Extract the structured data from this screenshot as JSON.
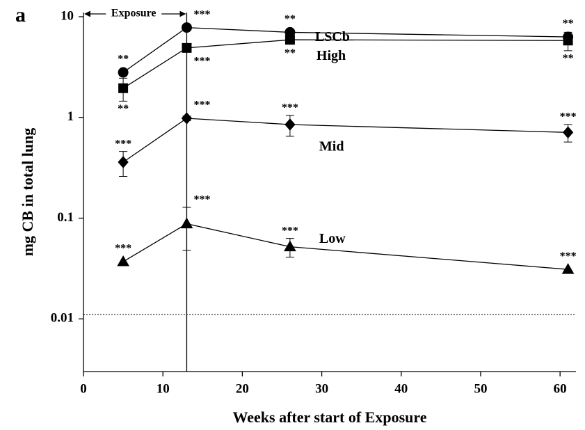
{
  "chart_data": {
    "type": "line",
    "panel_label": "a",
    "xlabel": "Weeks after start of Exposure",
    "ylabel": "mg CB in total lung",
    "x": [
      5,
      13,
      26,
      61
    ],
    "xlim": [
      0,
      62
    ],
    "xticks": [
      0,
      10,
      20,
      30,
      40,
      50,
      60
    ],
    "ylim": [
      0.003,
      11
    ],
    "yticks": [
      10,
      1,
      0.1,
      0.01
    ],
    "log_y": true,
    "color": "#000000",
    "exposure_label": "Exposure",
    "exposure_range": [
      0,
      13
    ],
    "reference_line": 0.011,
    "series": [
      {
        "name": "LSCb",
        "marker": "circle",
        "values": [
          2.8,
          7.8,
          7.0,
          6.3
        ],
        "errors": [
          0.2,
          0.3,
          0.4,
          0.4
        ],
        "significance": [
          "**",
          "***",
          "**",
          "**"
        ]
      },
      {
        "name": "High",
        "marker": "square",
        "values": [
          1.95,
          4.9,
          5.9,
          5.8
        ],
        "errors": [
          0.5,
          0.3,
          0.4,
          1.2
        ],
        "significance": [
          "**",
          "***",
          "**",
          "**"
        ]
      },
      {
        "name": "Mid",
        "marker": "diamond",
        "values": [
          0.36,
          0.98,
          0.85,
          0.71
        ],
        "errors": [
          0.1,
          0.05,
          0.2,
          0.14
        ],
        "significance": [
          "***",
          "***",
          "***",
          "***"
        ]
      },
      {
        "name": "Low",
        "marker": "triangle",
        "values": [
          0.037,
          0.088,
          0.052,
          0.031
        ],
        "errors": [
          null,
          0.04,
          0.011,
          null
        ],
        "significance": [
          "***",
          "***",
          "***",
          "***"
        ]
      }
    ]
  }
}
